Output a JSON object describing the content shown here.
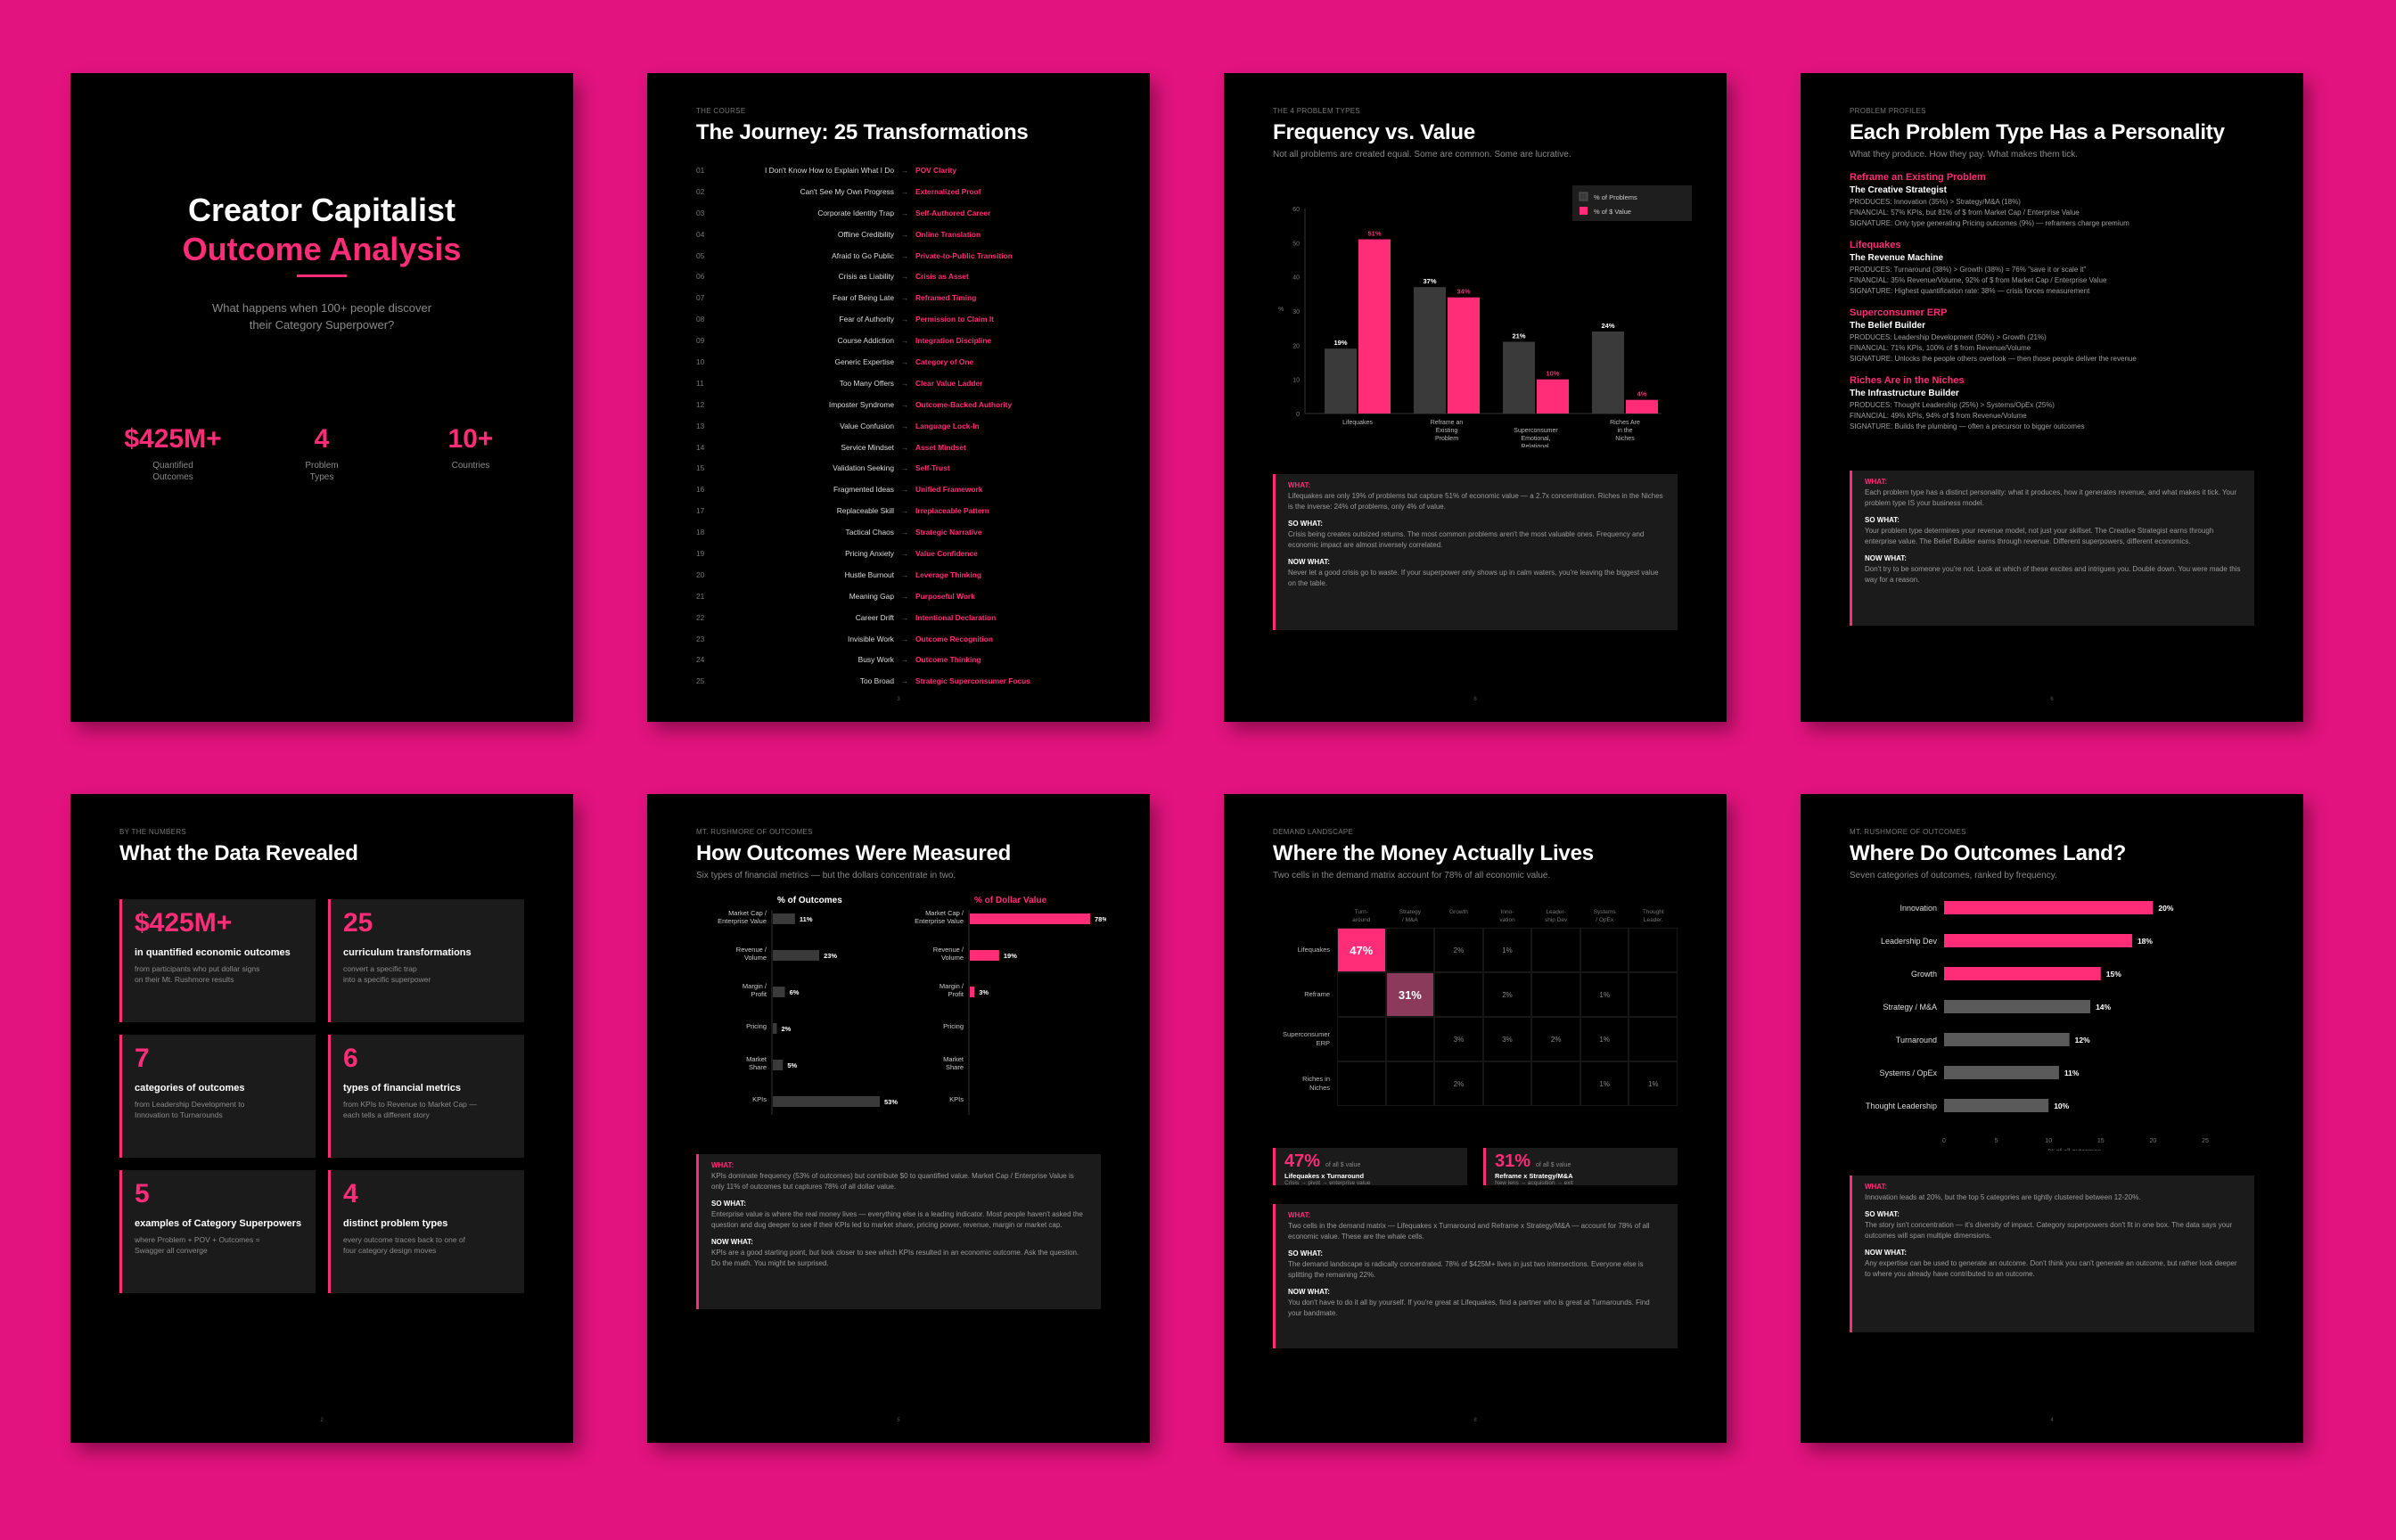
{
  "cover": {
    "title_line1": "Creator Capitalist",
    "title_line2": "Outcome Analysis",
    "subtitle_line1": "What happens when 100+ people discover",
    "subtitle_line2": "their Category Superpower?",
    "stats": [
      {
        "value": "$425M+",
        "label1": "Quantified",
        "label2": "Outcomes"
      },
      {
        "value": "4",
        "label1": "Problem",
        "label2": "Types"
      },
      {
        "value": "10+",
        "label1": "Countries",
        "label2": ""
      }
    ]
  },
  "journey": {
    "eyebrow": "The Course",
    "title": "The Journey: 25 Transformations",
    "arrow": "→",
    "page_num": "3",
    "items": [
      {
        "num": "01",
        "from": "I Don't Know How to Explain What I Do",
        "to": "POV Clarity"
      },
      {
        "num": "02",
        "from": "Can't See My Own Progress",
        "to": "Externalized Proof"
      },
      {
        "num": "03",
        "from": "Corporate Identity Trap",
        "to": "Self-Authored Career"
      },
      {
        "num": "04",
        "from": "Offline Credibility",
        "to": "Online Translation"
      },
      {
        "num": "05",
        "from": "Afraid to Go Public",
        "to": "Private-to-Public Transition"
      },
      {
        "num": "06",
        "from": "Crisis as Liability",
        "to": "Crisis as Asset"
      },
      {
        "num": "07",
        "from": "Fear of Being Late",
        "to": "Reframed Timing"
      },
      {
        "num": "08",
        "from": "Fear of Authority",
        "to": "Permission to Claim It"
      },
      {
        "num": "09",
        "from": "Course Addiction",
        "to": "Integration Discipline"
      },
      {
        "num": "10",
        "from": "Generic Expertise",
        "to": "Category of One"
      },
      {
        "num": "11",
        "from": "Too Many Offers",
        "to": "Clear Value Ladder"
      },
      {
        "num": "12",
        "from": "Imposter Syndrome",
        "to": "Outcome-Backed Authority"
      },
      {
        "num": "13",
        "from": "Value Confusion",
        "to": "Language Lock-In"
      },
      {
        "num": "14",
        "from": "Service Mindset",
        "to": "Asset Mindset"
      },
      {
        "num": "15",
        "from": "Validation Seeking",
        "to": "Self-Trust"
      },
      {
        "num": "16",
        "from": "Fragmented Ideas",
        "to": "Unified Framework"
      },
      {
        "num": "17",
        "from": "Replaceable Skill",
        "to": "Irreplaceable Pattern"
      },
      {
        "num": "18",
        "from": "Tactical Chaos",
        "to": "Strategic Narrative"
      },
      {
        "num": "19",
        "from": "Pricing Anxiety",
        "to": "Value Confidence"
      },
      {
        "num": "20",
        "from": "Hustle Burnout",
        "to": "Leverage Thinking"
      },
      {
        "num": "21",
        "from": "Meaning Gap",
        "to": "Purposeful Work"
      },
      {
        "num": "22",
        "from": "Career Drift",
        "to": "Intentional Declaration"
      },
      {
        "num": "23",
        "from": "Invisible Work",
        "to": "Outcome Recognition"
      },
      {
        "num": "24",
        "from": "Busy Work",
        "to": "Outcome Thinking"
      },
      {
        "num": "25",
        "from": "Too Broad",
        "to": "Strategic Superconsumer Focus"
      }
    ]
  },
  "frequency": {
    "eyebrow": "The 4 Problem Types",
    "title": "Frequency vs. Value",
    "subtitle": "Not all problems are created equal. Some are common. Some are lucrative.",
    "page_num": "6",
    "what_label": "WHAT:",
    "what_text": "Lifequakes are only 19% of problems but capture 51% of economic value — a 2.7x concentration. Riches in the Niches is the inverse: 24% of problems, only 4% of value.",
    "sowhat_label": "SO WHAT:",
    "sowhat_text": "Crisis being creates outsized returns. The most common problems aren't the most valuable ones. Frequency and economic impact are almost inversely correlated.",
    "nowwhat_label": "NOW WHAT:",
    "nowwhat_text": "Never let a good crisis go to waste. If your superpower only shows up in calm waters, you're leaving the biggest value on the table."
  },
  "profiles": {
    "eyebrow": "Problem Profiles",
    "title": "Each Problem Type Has a Personality",
    "subtitle": "What they produce. How they pay. What makes them tick.",
    "page_num": "6",
    "items": [
      {
        "name": "Reframe an Existing Problem",
        "archetype": "The Creative Strategist",
        "produces": "PRODUCES: Innovation (35%) > Strategy/M&A (18%)",
        "financial": "FINANCIAL: 57% KPIs, but 81% of $ from Market Cap / Enterprise Value",
        "signature": "SIGNATURE: Only type generating Pricing outcomes (9%) — reframers charge premium"
      },
      {
        "name": "Lifequakes",
        "archetype": "The Revenue Machine",
        "produces": "PRODUCES: Turnaround (38%) > Growth (38%) = 76% \"save it or scale it\"",
        "financial": "FINANCIAL: 35% Revenue/Volume, 92% of $ from Market Cap / Enterprise Value",
        "signature": "SIGNATURE: Highest quantification rate: 38% — crisis forces measurement"
      },
      {
        "name": "Superconsumer ERP",
        "archetype": "The Belief Builder",
        "produces": "PRODUCES: Leadership Development (50%) > Growth (21%)",
        "financial": "FINANCIAL: 71% KPIs, 100% of $ from Revenue/Volume",
        "signature": "SIGNATURE: Unlocks the people others overlook — then those people deliver the revenue"
      },
      {
        "name": "Riches Are in the Niches",
        "archetype": "The Infrastructure Builder",
        "produces": "PRODUCES: Thought Leadership (25%) > Systems/OpEx (25%)",
        "financial": "FINANCIAL: 49% KPIs, 94% of $ from Revenue/Volume",
        "signature": "SIGNATURE: Builds the plumbing — often a precursor to bigger outcomes"
      }
    ],
    "what_label": "WHAT:",
    "what_text": "Each problem type has a distinct personality: what it produces, how it generates revenue, and what makes it tick. Your problem type IS your business model.",
    "sowhat_label": "SO WHAT:",
    "sowhat_text": "Your problem type determines your revenue model, not just your skillset. The Creative Strategist earns through enterprise value. The Belief Builder earns through revenue. Different superpowers, different economics.",
    "nowwhat_label": "NOW WHAT:",
    "nowwhat_text": "Don't try to be someone you're not. Look at which of these excites and intrigues you. Double down. You were made this way for a reason."
  },
  "numbers": {
    "eyebrow": "By the Numbers",
    "title": "What the Data Revealed",
    "page_num": "2",
    "cards": [
      {
        "value": "$425M+",
        "label": "in quantified economic outcomes",
        "desc1": "from participants who put dollar signs",
        "desc2": "on their Mt. Rushmore results"
      },
      {
        "value": "25",
        "label": "curriculum transformations",
        "desc1": "convert a specific trap",
        "desc2": "into a specific superpower"
      },
      {
        "value": "7",
        "label": "categories of outcomes",
        "desc1": "from Leadership Development to",
        "desc2": "Innovation to Turnarounds"
      },
      {
        "value": "6",
        "label": "types of financial metrics",
        "desc1": "from KPIs to Revenue to Market Cap —",
        "desc2": "each tells a different story"
      },
      {
        "value": "5",
        "label": "examples of Category Superpowers",
        "desc1": "where Problem + POV + Outcomes =",
        "desc2": "Swagger all converge"
      },
      {
        "value": "4",
        "label": "distinct problem types",
        "desc1": "every outcome traces back to one of",
        "desc2": "four category design moves"
      }
    ]
  },
  "measured": {
    "eyebrow": "Mt. Rushmore of Outcomes",
    "title": "How Outcomes Were Measured",
    "subtitle": "Six types of financial metrics — but the dollars concentrate in two.",
    "page_num": "5",
    "what_label": "WHAT:",
    "what_text": "KPIs dominate frequency (53% of outcomes) but contribute $0 to quantified value. Market Cap / Enterprise Value is only 11% of outcomes but captures 78% of all dollar value.",
    "sowhat_label": "SO WHAT:",
    "sowhat_text": "Enterprise value is where the real money lives — everything else is a leading indicator. Most people haven't asked the question and dug deeper to see if their KPIs led to market share, pricing power, revenue, margin or market cap.",
    "nowwhat_label": "NOW WHAT:",
    "nowwhat_text": "KPIs are a good starting point, but look closer to see which KPIs resulted in an economic outcome. Ask the question. Do the math. You might be surprised."
  },
  "demand": {
    "eyebrow": "Demand Landscape",
    "title": "Where the Money Actually Lives",
    "subtitle": "Two cells in the demand matrix account for 78% of all economic value.",
    "page_num": "8",
    "cols": [
      "Turn-\naround",
      "Strategy\n/ M&A",
      "Growth",
      "Inno-\nvation",
      "Leader-\nship Dev",
      "Systems\n/ OpEx",
      "Thought\nLeader."
    ],
    "rows": [
      {
        "label": "Lifequakes",
        "cells": [
          "47%",
          "",
          "2%",
          "1%",
          "",
          "",
          ""
        ]
      },
      {
        "label": "Reframe",
        "cells": [
          "",
          "31%",
          "",
          "2%",
          "",
          "1%",
          ""
        ]
      },
      {
        "label": "Superconsumer\nERP",
        "cells": [
          "",
          "",
          "3%",
          "3%",
          "2%",
          "1%",
          ""
        ]
      },
      {
        "label": "Riches in\nNiches",
        "cells": [
          "",
          "",
          "2%",
          "",
          "",
          "1%",
          "1%"
        ]
      }
    ],
    "stats": [
      {
        "value": "47%",
        "note": "of all $ value",
        "label": "Lifequakes x Turnaround",
        "sub": "Crisis → pivot → enterprise value"
      },
      {
        "value": "31%",
        "note": "of all $ value",
        "label": "Reframe x Strategy/M&A",
        "sub": "New lens → acquisition → exit"
      }
    ],
    "what_label": "WHAT:",
    "what_text": "Two cells in the demand matrix — Lifequakes x Turnaround and Reframe x Strategy/M&A — account for 78% of all economic value. These are the whale cells.",
    "sowhat_label": "SO WHAT:",
    "sowhat_text": "The demand landscape is radically concentrated. 78% of $425M+ lives in just two intersections. Everyone else is splitting the remaining 22%.",
    "nowwhat_label": "NOW WHAT:",
    "nowwhat_text": "You don't have to do it all by yourself. If you're great at Lifequakes, find a partner who is great at Turnarounds. Find your bandmate."
  },
  "land": {
    "eyebrow": "Mt. Rushmore of Outcomes",
    "title": "Where Do Outcomes Land?",
    "subtitle": "Seven categories of outcomes, ranked by frequency.",
    "page_num": "4",
    "what_label": "WHAT:",
    "what_text": "Innovation leads at 20%, but the top 5 categories are tightly clustered between 12-20%.",
    "sowhat_label": "SO WHAT:",
    "sowhat_text": "The story isn't concentration — it's diversity of impact. Category superpowers don't fit in one box. The data says your outcomes will span multiple dimensions.",
    "nowwhat_label": "NOW WHAT:",
    "nowwhat_text": "Any expertise can be used to generate an outcome. Don't think you can't generate an outcome, but rather look deeper to where you already have contributed to an outcome."
  },
  "chart_data": [
    {
      "type": "bar",
      "title": "Frequency vs. Value",
      "categories": [
        "Lifequakes",
        "Reframe an Existing Problem",
        "Superconsumer Emotional, Relational, Personal",
        "Riches Are in the Niches"
      ],
      "series": [
        {
          "name": "% of Problems",
          "values": [
            19,
            37,
            21,
            24
          ],
          "color": "#3a3a3a"
        },
        {
          "name": "% of $ Value",
          "values": [
            51,
            34,
            10,
            4
          ],
          "color": "#ff2d78"
        }
      ],
      "ylabel": "%",
      "ylim": [
        0,
        60
      ],
      "yticks": [
        0,
        10,
        20,
        30,
        40,
        50,
        60
      ],
      "legend": "top-right"
    },
    {
      "type": "bar",
      "title": "% of Outcomes",
      "orientation": "horizontal",
      "categories": [
        "Market Cap / Enterprise Value",
        "Revenue / Volume",
        "Margin / Profit",
        "Pricing",
        "Market Share",
        "KPIs"
      ],
      "values": [
        11,
        23,
        6,
        2,
        5,
        53
      ],
      "color": "#3a3a3a"
    },
    {
      "type": "bar",
      "title": "% of Dollar Value",
      "orientation": "horizontal",
      "categories": [
        "Market Cap / Enterprise Value",
        "Revenue / Volume",
        "Margin / Profit",
        "Pricing",
        "Market Share",
        "KPIs"
      ],
      "values": [
        78,
        19,
        3,
        0,
        0,
        0
      ],
      "color": "#ff2d78"
    },
    {
      "type": "bar",
      "title": "Where Do Outcomes Land?",
      "orientation": "horizontal",
      "categories": [
        "Innovation",
        "Leadership Dev",
        "Growth",
        "Strategy / M&A",
        "Turnaround",
        "Systems / OpEx",
        "Thought Leadership"
      ],
      "values": [
        20,
        18,
        15,
        14,
        12,
        11,
        10
      ],
      "highlight_top": 3,
      "xlim": [
        0,
        25
      ],
      "xticks": [
        0,
        5,
        10,
        15,
        20,
        25
      ],
      "xlabel": "% of all outcomes"
    }
  ]
}
